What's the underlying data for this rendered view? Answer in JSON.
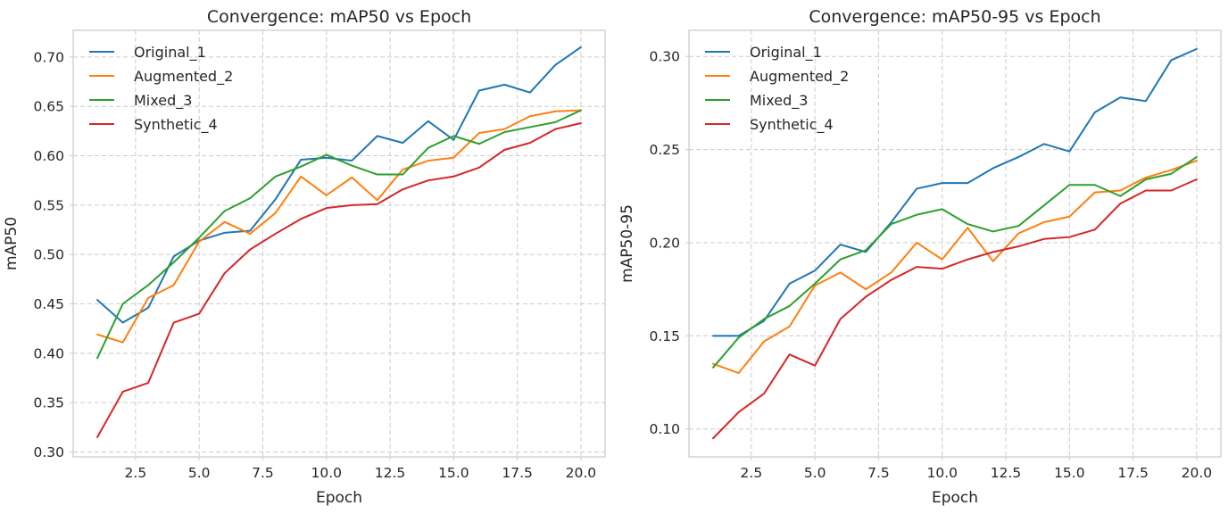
{
  "chart_data": [
    {
      "type": "line",
      "title": "Convergence: mAP50 vs Epoch",
      "xlabel": "Epoch",
      "ylabel": "mAP50",
      "xlim": [
        0.05,
        20.95
      ],
      "ylim": [
        0.295,
        0.727
      ],
      "xticks": [
        2.5,
        5.0,
        7.5,
        10.0,
        12.5,
        15.0,
        17.5,
        20.0
      ],
      "xtick_labels": [
        "2.5",
        "5.0",
        "7.5",
        "10.0",
        "12.5",
        "15.0",
        "17.5",
        "20.0"
      ],
      "yticks": [
        0.3,
        0.35,
        0.4,
        0.45,
        0.5,
        0.55,
        0.6,
        0.65,
        0.7
      ],
      "ytick_labels": [
        "0.30",
        "0.35",
        "0.40",
        "0.45",
        "0.50",
        "0.55",
        "0.60",
        "0.65",
        "0.70"
      ],
      "grid": true,
      "legend_position": "top-left",
      "x": [
        1,
        2,
        3,
        4,
        5,
        6,
        7,
        8,
        9,
        10,
        11,
        12,
        13,
        14,
        15,
        16,
        17,
        18,
        19,
        20
      ],
      "series": [
        {
          "name": "Original_1",
          "color": "#1f77b4",
          "values": [
            0.454,
            0.431,
            0.446,
            0.498,
            0.514,
            0.522,
            0.524,
            0.556,
            0.596,
            0.598,
            0.595,
            0.62,
            0.613,
            0.635,
            0.616,
            0.666,
            0.672,
            0.664,
            0.692,
            0.71
          ]
        },
        {
          "name": "Augmented_2",
          "color": "#ff7f0e",
          "values": [
            0.419,
            0.411,
            0.456,
            0.469,
            0.513,
            0.533,
            0.521,
            0.542,
            0.579,
            0.56,
            0.578,
            0.555,
            0.586,
            0.595,
            0.598,
            0.623,
            0.627,
            0.64,
            0.645,
            0.646
          ]
        },
        {
          "name": "Mixed_3",
          "color": "#2ca02c",
          "values": [
            0.395,
            0.45,
            0.469,
            0.492,
            0.517,
            0.544,
            0.557,
            0.579,
            0.589,
            0.601,
            0.59,
            0.581,
            0.581,
            0.608,
            0.62,
            0.612,
            0.624,
            0.629,
            0.634,
            0.646
          ]
        },
        {
          "name": "Synthetic_4",
          "color": "#d62728",
          "values": [
            0.315,
            0.361,
            0.37,
            0.431,
            0.44,
            0.481,
            0.505,
            0.521,
            0.536,
            0.547,
            0.55,
            0.551,
            0.566,
            0.575,
            0.579,
            0.588,
            0.606,
            0.613,
            0.627,
            0.633
          ]
        }
      ]
    },
    {
      "type": "line",
      "title": "Convergence: mAP50-95 vs Epoch",
      "xlabel": "Epoch",
      "ylabel": "mAP50-95",
      "xlim": [
        0.05,
        20.95
      ],
      "ylim": [
        0.085,
        0.314
      ],
      "xticks": [
        2.5,
        5.0,
        7.5,
        10.0,
        12.5,
        15.0,
        17.5,
        20.0
      ],
      "xtick_labels": [
        "2.5",
        "5.0",
        "7.5",
        "10.0",
        "12.5",
        "15.0",
        "17.5",
        "20.0"
      ],
      "yticks": [
        0.1,
        0.15,
        0.2,
        0.25,
        0.3
      ],
      "ytick_labels": [
        "0.10",
        "0.15",
        "0.20",
        "0.25",
        "0.30"
      ],
      "grid": true,
      "legend_position": "top-left",
      "x": [
        1,
        2,
        3,
        4,
        5,
        6,
        7,
        8,
        9,
        10,
        11,
        12,
        13,
        14,
        15,
        16,
        17,
        18,
        19,
        20
      ],
      "series": [
        {
          "name": "Original_1",
          "color": "#1f77b4",
          "values": [
            0.15,
            0.15,
            0.158,
            0.178,
            0.185,
            0.199,
            0.195,
            0.211,
            0.229,
            0.232,
            0.232,
            0.24,
            0.246,
            0.253,
            0.249,
            0.27,
            0.278,
            0.276,
            0.298,
            0.304
          ]
        },
        {
          "name": "Augmented_2",
          "color": "#ff7f0e",
          "values": [
            0.135,
            0.13,
            0.147,
            0.155,
            0.177,
            0.184,
            0.175,
            0.184,
            0.2,
            0.191,
            0.208,
            0.19,
            0.205,
            0.211,
            0.214,
            0.227,
            0.228,
            0.235,
            0.239,
            0.244
          ]
        },
        {
          "name": "Mixed_3",
          "color": "#2ca02c",
          "values": [
            0.133,
            0.149,
            0.159,
            0.166,
            0.178,
            0.191,
            0.196,
            0.21,
            0.215,
            0.218,
            0.21,
            0.206,
            0.209,
            0.22,
            0.231,
            0.231,
            0.225,
            0.234,
            0.237,
            0.246
          ]
        },
        {
          "name": "Synthetic_4",
          "color": "#d62728",
          "values": [
            0.095,
            0.109,
            0.119,
            0.14,
            0.134,
            0.159,
            0.171,
            0.18,
            0.187,
            0.186,
            0.191,
            0.195,
            0.198,
            0.202,
            0.203,
            0.207,
            0.221,
            0.228,
            0.228,
            0.234
          ]
        }
      ]
    }
  ]
}
